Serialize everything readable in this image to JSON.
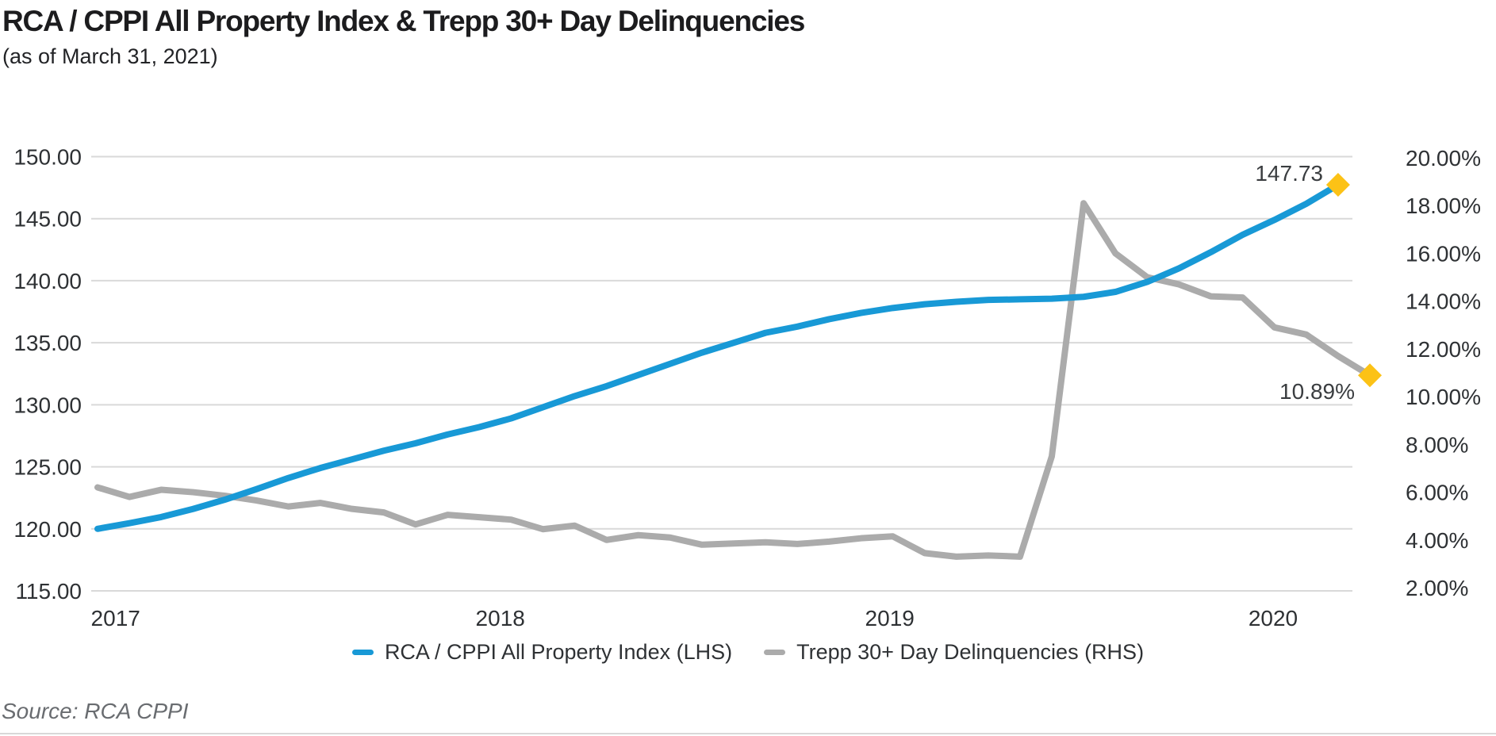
{
  "header": {
    "title": "RCA / CPPI All Property Index & Trepp 30+ Day Delinquencies",
    "subtitle": "(as of March 31, 2021)"
  },
  "source": {
    "text": "Source: RCA CPPI"
  },
  "colors": {
    "blue": "#1899d6",
    "gray": "#ababab",
    "marker_yellow": "#fcc216",
    "gridline": "#d9d9d9",
    "axis_text": "#2e3134",
    "title_text": "#1c1c1e",
    "source_text": "#696c70"
  },
  "chart_data": {
    "type": "line",
    "title": "RCA / CPPI All Property Index & Trepp 30+ Day Delinquencies",
    "subtitle": "(as of March 31, 2021)",
    "grid": true,
    "legend_position": "bottom",
    "x_tick_labels": [
      "2017",
      "2018",
      "2019",
      "2020"
    ],
    "left_axis": {
      "min": 115,
      "max": 150,
      "step": 5,
      "tick_labels": [
        "150.00",
        "145.00",
        "140.00",
        "135.00",
        "130.00",
        "125.00",
        "120.00",
        "115.00"
      ]
    },
    "right_axis": {
      "min": 2,
      "max": 20,
      "step": 2,
      "tick_labels": [
        "20.00%",
        "18.00%",
        "16.00%",
        "14.00%",
        "12.00%",
        "10.00%",
        "8.00%",
        "6.00%",
        "4.00%",
        "2.00%"
      ]
    },
    "series": [
      {
        "name": "RCA / CPPI All Property Index (LHS)",
        "axis": "left",
        "color": "#1899d6",
        "end_label": "147.73",
        "values": [
          120.0,
          120.45,
          120.95,
          121.6,
          122.35,
          123.2,
          124.1,
          124.9,
          125.6,
          126.3,
          126.9,
          127.6,
          128.2,
          128.9,
          129.8,
          130.7,
          131.5,
          132.4,
          133.3,
          134.2,
          135.0,
          135.8,
          136.3,
          136.9,
          137.4,
          137.8,
          138.1,
          138.3,
          138.45,
          138.5,
          138.55,
          138.7,
          139.1,
          139.9,
          141.0,
          142.3,
          143.7,
          144.9,
          146.2,
          147.73
        ]
      },
      {
        "name": "Trepp 30+ Day Delinquencies (RHS)",
        "axis": "right",
        "color": "#ababab",
        "end_label": "10.89%",
        "values": [
          6.2,
          5.8,
          6.1,
          6.0,
          5.85,
          5.65,
          5.4,
          5.55,
          5.3,
          5.15,
          4.65,
          5.05,
          4.95,
          4.85,
          4.45,
          4.6,
          4.0,
          4.2,
          4.1,
          3.8,
          3.85,
          3.9,
          3.83,
          3.93,
          4.07,
          4.15,
          3.45,
          3.3,
          3.35,
          3.3,
          7.5,
          18.1,
          16.0,
          15.0,
          14.7,
          14.2,
          14.15,
          12.9,
          12.6,
          11.7,
          10.89
        ]
      }
    ]
  }
}
